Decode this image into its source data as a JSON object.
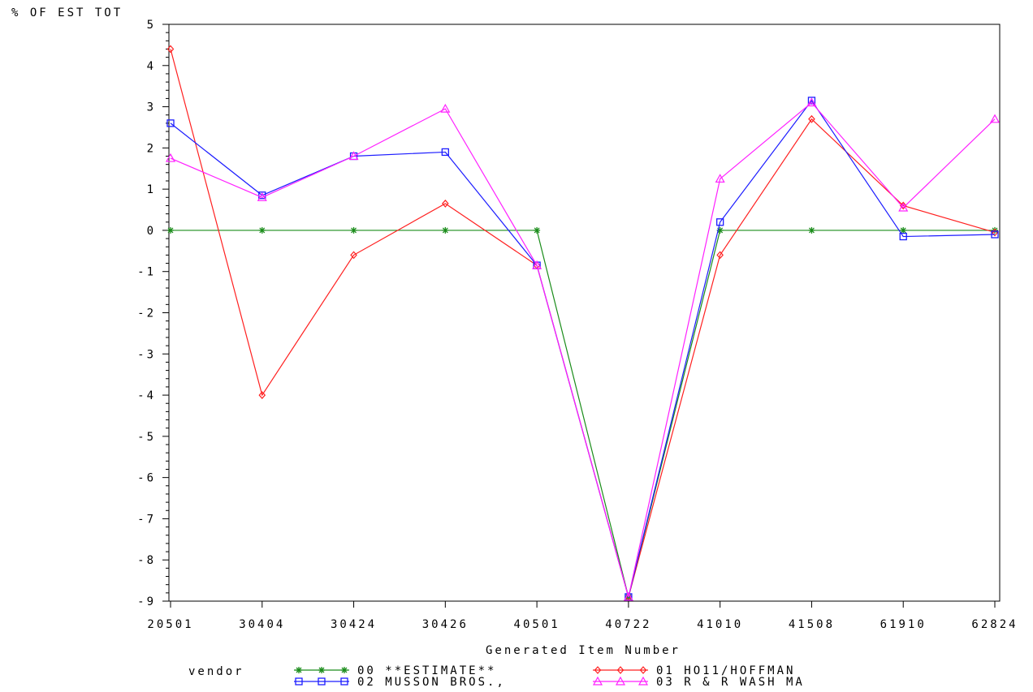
{
  "chart_data": {
    "type": "line",
    "ylabel": "% OF EST TOT",
    "xlabel": "Generated Item Number",
    "legend_title": "vendor",
    "legend_position": "bottom",
    "categories": [
      "20501",
      "30404",
      "30424",
      "30426",
      "40501",
      "40722",
      "41010",
      "41508",
      "61910",
      "62824"
    ],
    "ylim": [
      -9,
      5
    ],
    "yticks": [
      "5",
      "4",
      "3",
      "2",
      "1",
      "0",
      "-1",
      "-2",
      "-3",
      "-4",
      "-5",
      "-6",
      "-7",
      "-8",
      "-9"
    ],
    "series": [
      {
        "name": "00 **ESTIMATE**",
        "color": "#1a8c1a",
        "marker": "star",
        "values": [
          0,
          0,
          0,
          0,
          0,
          -8.9,
          0,
          0,
          0,
          0
        ]
      },
      {
        "name": "01 HO11/HOFFMAN",
        "color": "#ff2020",
        "marker": "diamond",
        "values": [
          4.4,
          -4.0,
          -0.6,
          0.65,
          -0.85,
          -8.9,
          -0.6,
          2.7,
          0.6,
          -0.05
        ]
      },
      {
        "name": "02 MUSSON BROS.,",
        "color": "#1c1cff",
        "marker": "square",
        "values": [
          2.6,
          0.85,
          1.8,
          1.9,
          -0.85,
          -8.9,
          0.2,
          3.15,
          -0.15,
          -0.1
        ]
      },
      {
        "name": "03 R & R WASH MA",
        "color": "#ff20ff",
        "marker": "triangle",
        "values": [
          1.75,
          0.8,
          1.8,
          2.95,
          -0.85,
          -8.9,
          1.25,
          3.1,
          0.55,
          2.7
        ]
      }
    ]
  }
}
